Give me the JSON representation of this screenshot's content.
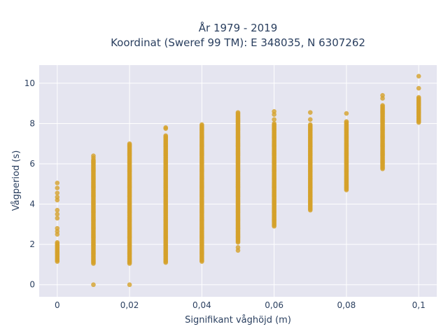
{
  "chart_data": {
    "type": "scatter",
    "title_line1": "År 1979 - 2019",
    "title_line2": "Koordinat (Sweref 99 TM): E 348035, N 6307262",
    "xlabel": "Signifikant våghöjd (m)",
    "ylabel": "Vågperiod (s)",
    "xlim": [
      -0.005,
      0.105
    ],
    "ylim": [
      -0.6,
      10.9
    ],
    "x_ticks": [
      0,
      0.02,
      0.04,
      0.06,
      0.08,
      0.1
    ],
    "x_tick_labels": [
      "0",
      "0,02",
      "0,04",
      "0,06",
      "0,08",
      "0,1"
    ],
    "y_ticks": [
      0,
      2,
      4,
      6,
      8,
      10
    ],
    "y_tick_labels": [
      "0",
      "2",
      "4",
      "6",
      "8",
      "10"
    ],
    "grid": true,
    "marker_color": "#d4a12a",
    "plot_bg": "#e5e5f0",
    "columns": [
      {
        "x": 0,
        "y_min": 1.15,
        "y_max": 2.1,
        "extra": [
          2.5,
          2.65,
          2.8,
          3.3,
          3.5,
          3.7,
          4.2,
          4.35,
          4.55,
          4.8,
          5.05
        ]
      },
      {
        "x": 0.01,
        "y_min": 1.05,
        "y_max": 6.2,
        "extra": [
          0,
          6.3,
          6.4
        ]
      },
      {
        "x": 0.02,
        "y_min": 1.05,
        "y_max": 7.0,
        "extra": [
          0
        ]
      },
      {
        "x": 0.03,
        "y_min": 1.1,
        "y_max": 7.4,
        "extra": [
          7.75,
          7.8
        ]
      },
      {
        "x": 0.04,
        "y_min": 1.15,
        "y_max": 7.95,
        "extra": []
      },
      {
        "x": 0.05,
        "y_min": 2.1,
        "y_max": 8.55,
        "extra": [
          1.7,
          1.85
        ]
      },
      {
        "x": 0.06,
        "y_min": 2.9,
        "y_max": 8.0,
        "extra": [
          8.2,
          8.45,
          8.6
        ]
      },
      {
        "x": 0.07,
        "y_min": 3.7,
        "y_max": 7.95,
        "extra": [
          8.2,
          8.55
        ]
      },
      {
        "x": 0.08,
        "y_min": 4.7,
        "y_max": 8.1,
        "extra": [
          8.5
        ]
      },
      {
        "x": 0.09,
        "y_min": 5.75,
        "y_max": 8.9,
        "extra": [
          9.25,
          9.4
        ]
      },
      {
        "x": 0.1,
        "y_min": 8.05,
        "y_max": 9.3,
        "extra": [
          9.75,
          10.35
        ]
      }
    ]
  }
}
